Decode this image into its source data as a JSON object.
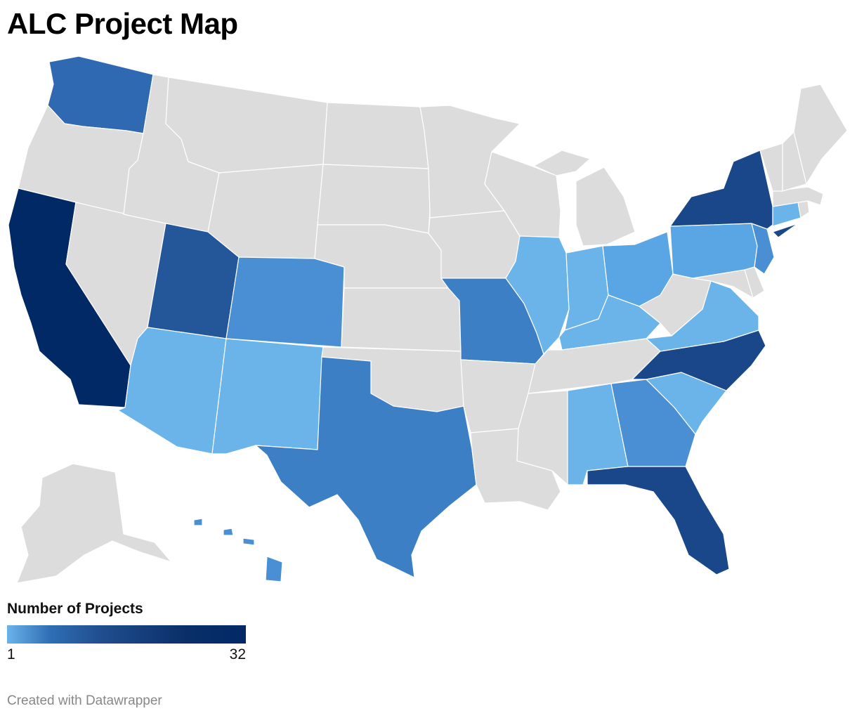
{
  "title": "ALC Project Map",
  "legend": {
    "title": "Number of Projects",
    "min_label": "1",
    "max_label": "32"
  },
  "credit": "Created with Datawrapper",
  "colors": {
    "none": "#dcdcdc",
    "tier1": "#6ab4ea",
    "tier2": "#5aa6e4",
    "tier3": "#4a8fd3",
    "tier4": "#3d7fc4",
    "tier5": "#2e69b2",
    "tier6": "#24579a",
    "tier7": "#1a4789",
    "tier8": "#002966"
  },
  "states": [
    {
      "code": "WA",
      "tier": "tier5"
    },
    {
      "code": "OR",
      "tier": "none"
    },
    {
      "code": "CA",
      "tier": "tier8"
    },
    {
      "code": "NV",
      "tier": "none"
    },
    {
      "code": "ID",
      "tier": "none"
    },
    {
      "code": "MT",
      "tier": "none"
    },
    {
      "code": "WY",
      "tier": "none"
    },
    {
      "code": "UT",
      "tier": "tier6"
    },
    {
      "code": "AZ",
      "tier": "tier1"
    },
    {
      "code": "CO",
      "tier": "tier3"
    },
    {
      "code": "NM",
      "tier": "tier1"
    },
    {
      "code": "ND",
      "tier": "none"
    },
    {
      "code": "SD",
      "tier": "none"
    },
    {
      "code": "NE",
      "tier": "none"
    },
    {
      "code": "KS",
      "tier": "none"
    },
    {
      "code": "OK",
      "tier": "none"
    },
    {
      "code": "TX",
      "tier": "tier4"
    },
    {
      "code": "MN",
      "tier": "none"
    },
    {
      "code": "IA",
      "tier": "none"
    },
    {
      "code": "MO",
      "tier": "tier4"
    },
    {
      "code": "AR",
      "tier": "none"
    },
    {
      "code": "LA",
      "tier": "none"
    },
    {
      "code": "WI",
      "tier": "none"
    },
    {
      "code": "IL",
      "tier": "tier1"
    },
    {
      "code": "MI",
      "tier": "none"
    },
    {
      "code": "IN",
      "tier": "tier1"
    },
    {
      "code": "OH",
      "tier": "tier2"
    },
    {
      "code": "KY",
      "tier": "tier1"
    },
    {
      "code": "TN",
      "tier": "none"
    },
    {
      "code": "MS",
      "tier": "none"
    },
    {
      "code": "AL",
      "tier": "tier1"
    },
    {
      "code": "GA",
      "tier": "tier3"
    },
    {
      "code": "FL",
      "tier": "tier7"
    },
    {
      "code": "SC",
      "tier": "tier1"
    },
    {
      "code": "NC",
      "tier": "tier7"
    },
    {
      "code": "VA",
      "tier": "tier1"
    },
    {
      "code": "WV",
      "tier": "none"
    },
    {
      "code": "MD",
      "tier": "none"
    },
    {
      "code": "DE",
      "tier": "none"
    },
    {
      "code": "PA",
      "tier": "tier2"
    },
    {
      "code": "NJ",
      "tier": "tier3"
    },
    {
      "code": "NY",
      "tier": "tier7"
    },
    {
      "code": "CT",
      "tier": "tier1"
    },
    {
      "code": "RI",
      "tier": "none"
    },
    {
      "code": "MA",
      "tier": "none"
    },
    {
      "code": "VT",
      "tier": "none"
    },
    {
      "code": "NH",
      "tier": "none"
    },
    {
      "code": "ME",
      "tier": "none"
    },
    {
      "code": "AK",
      "tier": "none"
    },
    {
      "code": "HI",
      "tier": "tier3"
    }
  ]
}
